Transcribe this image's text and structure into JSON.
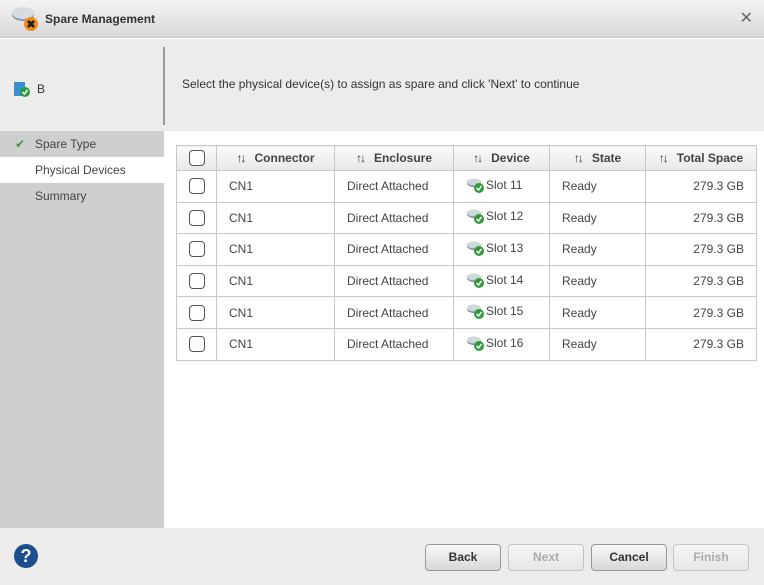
{
  "window": {
    "title": "Spare Management",
    "close": "✕"
  },
  "header": {
    "controller": "B",
    "instruction": "Select the physical device(s) to assign as spare and click 'Next' to continue"
  },
  "sidebar": {
    "items": [
      {
        "label": "Spare Type",
        "done": true
      },
      {
        "label": "Physical Devices",
        "active": true
      },
      {
        "label": "Summary"
      }
    ]
  },
  "table": {
    "sort_glyph": "↑↓",
    "columns": [
      "Connector",
      "Enclosure",
      "Device",
      "State",
      "Total Space"
    ],
    "rows": [
      [
        "CN1",
        "Direct Attached",
        "Slot 11",
        "Ready",
        "279.3 GB"
      ],
      [
        "CN1",
        "Direct Attached",
        "Slot 12",
        "Ready",
        "279.3 GB"
      ],
      [
        "CN1",
        "Direct Attached",
        "Slot 13",
        "Ready",
        "279.3 GB"
      ],
      [
        "CN1",
        "Direct Attached",
        "Slot 14",
        "Ready",
        "279.3 GB"
      ],
      [
        "CN1",
        "Direct Attached",
        "Slot 15",
        "Ready",
        "279.3 GB"
      ],
      [
        "CN1",
        "Direct Attached",
        "Slot 16",
        "Ready",
        "279.3 GB"
      ]
    ]
  },
  "footer": {
    "help": "?",
    "back": "Back",
    "next": "Next",
    "cancel": "Cancel",
    "finish": "Finish"
  }
}
